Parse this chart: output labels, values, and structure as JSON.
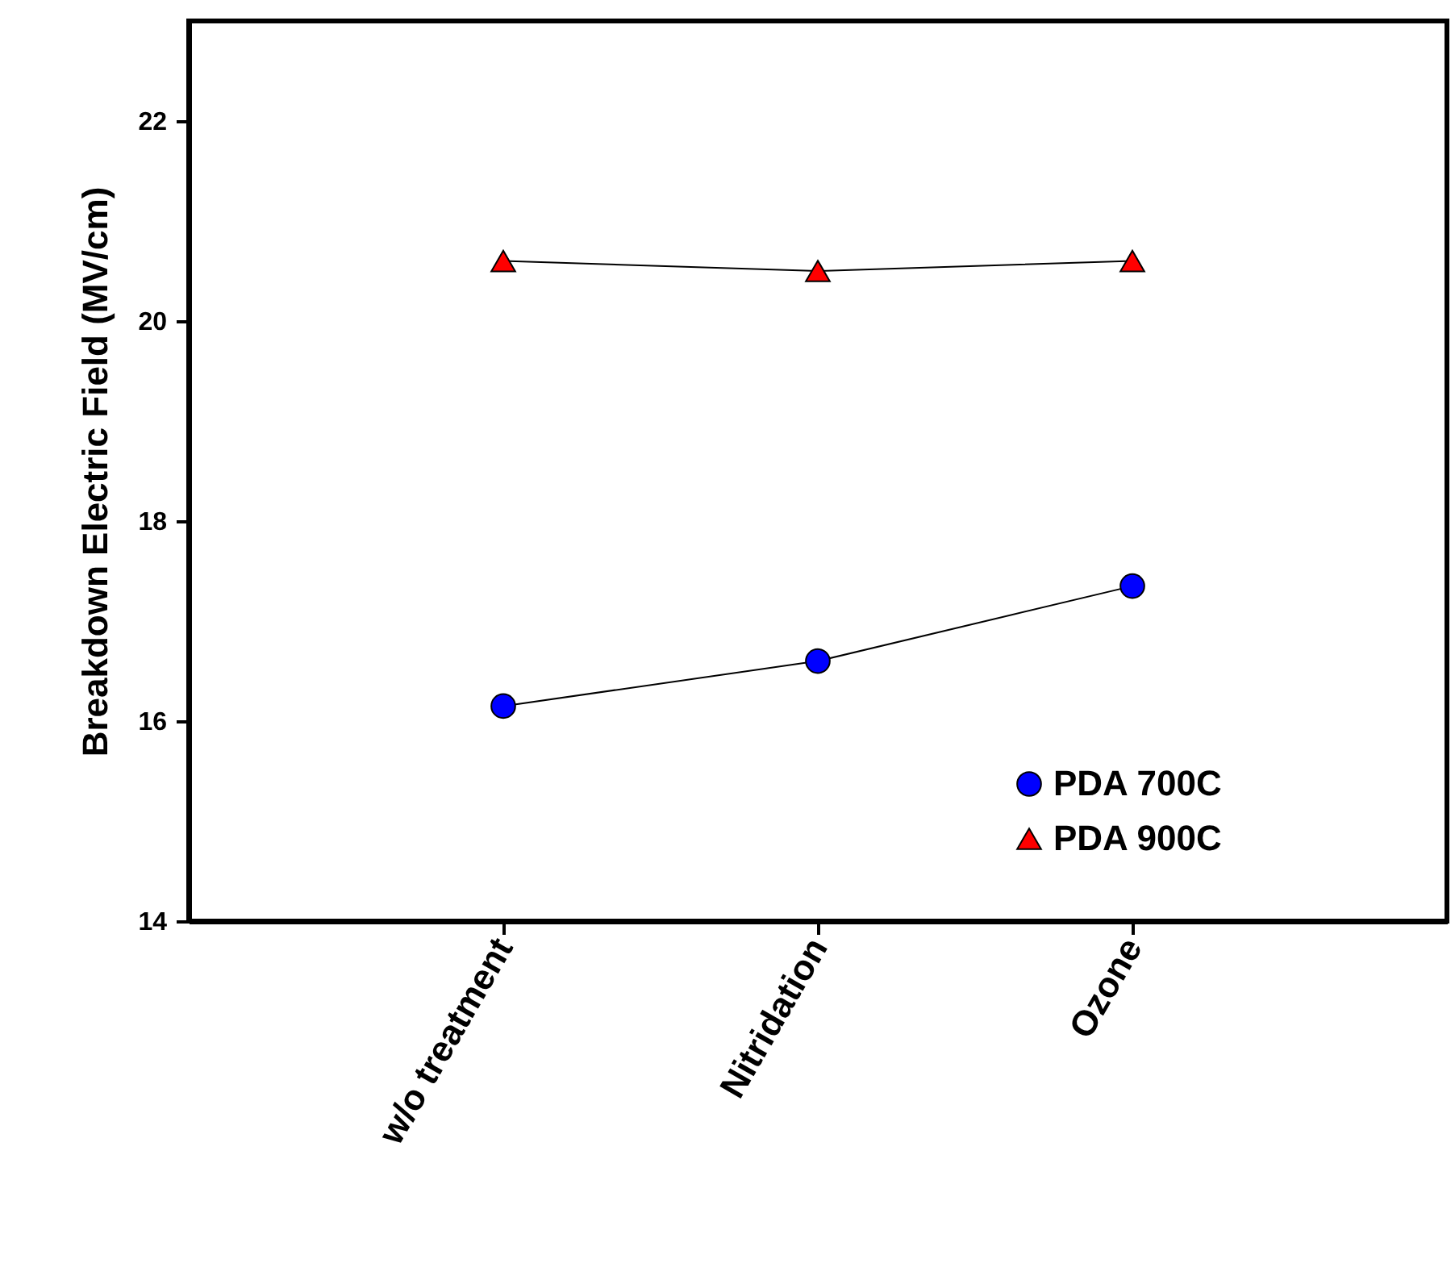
{
  "chart_data": {
    "type": "line",
    "ylabel": "Breakdown Electric Field (MV/cm)",
    "categories": [
      "w/o treatment",
      "Nitridation",
      "Ozone"
    ],
    "series": [
      {
        "name": "PDA 700C",
        "color": "#0000ff",
        "marker": "circle",
        "values": [
          16.15,
          16.6,
          17.35
        ]
      },
      {
        "name": "PDA 900C",
        "color": "#ff0000",
        "marker": "triangle",
        "values": [
          20.6,
          20.5,
          20.6
        ]
      }
    ],
    "ylim": [
      14,
      23
    ],
    "yticks": [
      14,
      16,
      18,
      20,
      22
    ],
    "grid": false,
    "legend": "bottom right"
  }
}
